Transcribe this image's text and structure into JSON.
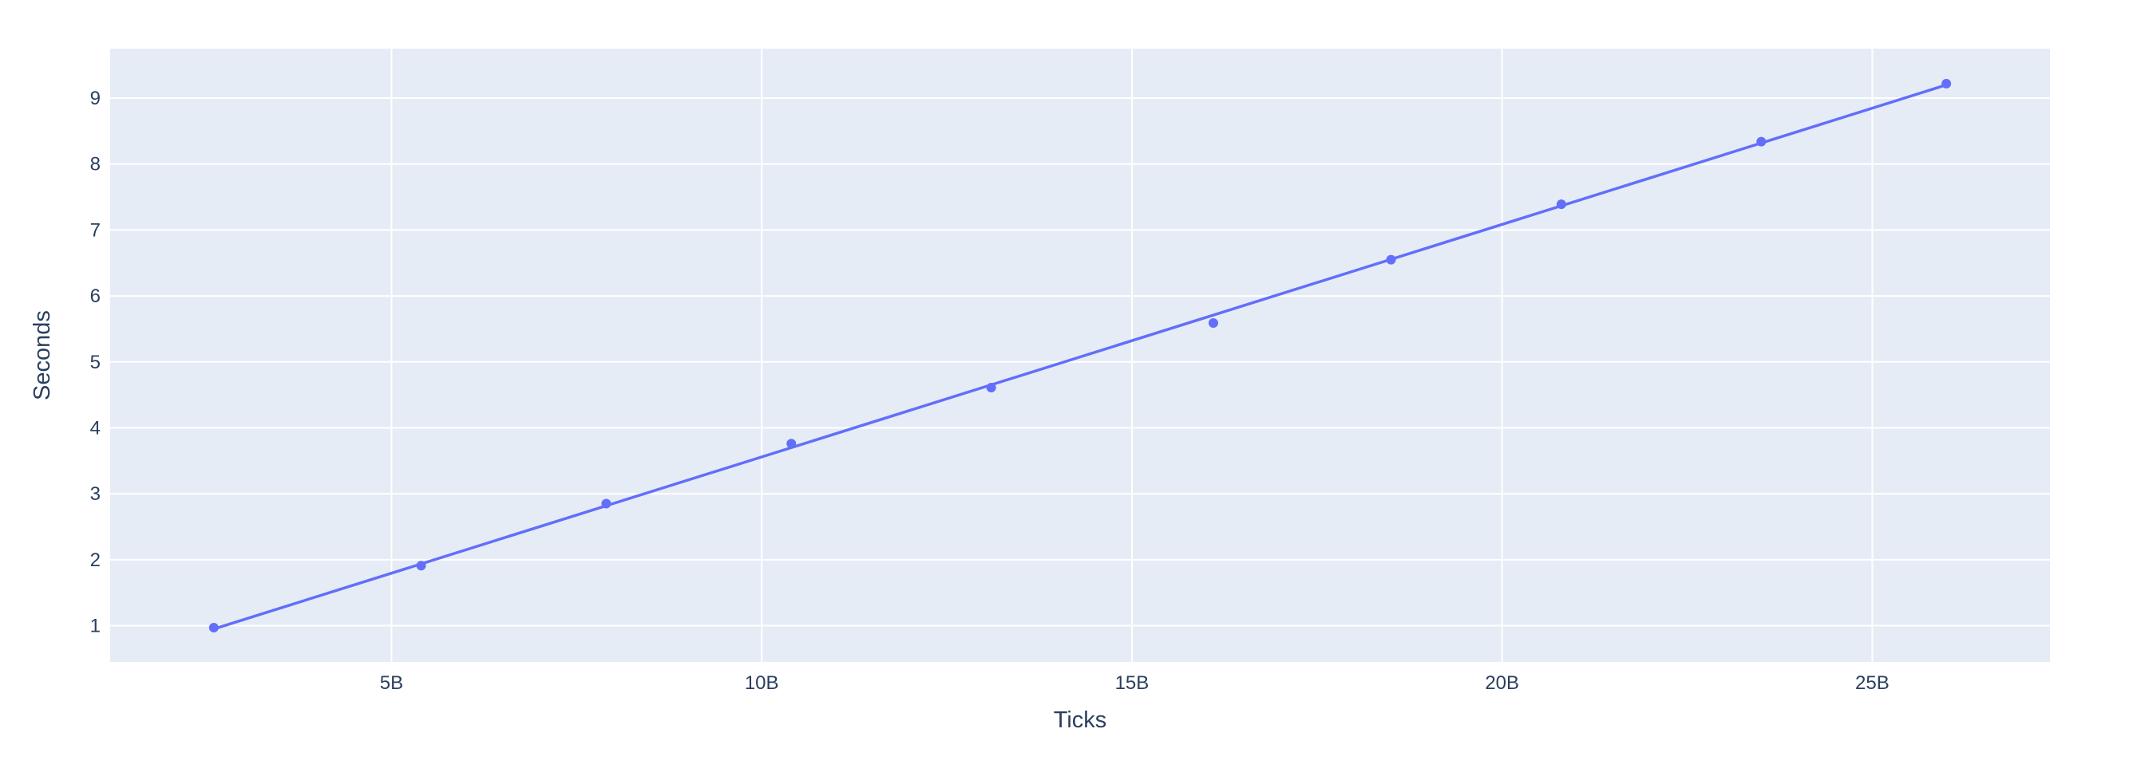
{
  "chart_data": {
    "type": "line",
    "xlabel": "Ticks",
    "ylabel": "Seconds",
    "xlim": [
      1200000000,
      27400000000
    ],
    "ylim": [
      0.45,
      9.75
    ],
    "x_ticks": [
      {
        "value": 5000000000,
        "label": "5B"
      },
      {
        "value": 10000000000,
        "label": "10B"
      },
      {
        "value": 15000000000,
        "label": "15B"
      },
      {
        "value": 20000000000,
        "label": "20B"
      },
      {
        "value": 25000000000,
        "label": "25B"
      }
    ],
    "y_ticks": [
      {
        "value": 1,
        "label": "1"
      },
      {
        "value": 2,
        "label": "2"
      },
      {
        "value": 3,
        "label": "3"
      },
      {
        "value": 4,
        "label": "4"
      },
      {
        "value": 5,
        "label": "5"
      },
      {
        "value": 6,
        "label": "6"
      },
      {
        "value": 7,
        "label": "7"
      },
      {
        "value": 8,
        "label": "8"
      },
      {
        "value": 9,
        "label": "9"
      }
    ],
    "grid": true,
    "legend": "none",
    "series": [
      {
        "mode": "markers",
        "points": [
          {
            "x": 2600000000,
            "y": 0.97
          },
          {
            "x": 5400000000,
            "y": 1.91
          },
          {
            "x": 7900000000,
            "y": 2.85
          },
          {
            "x": 10400000000,
            "y": 3.76
          },
          {
            "x": 13100000000,
            "y": 4.61
          },
          {
            "x": 16100000000,
            "y": 5.59
          },
          {
            "x": 18500000000,
            "y": 6.55
          },
          {
            "x": 20800000000,
            "y": 7.39
          },
          {
            "x": 23500000000,
            "y": 8.34
          },
          {
            "x": 26000000000,
            "y": 9.22
          }
        ]
      },
      {
        "mode": "line",
        "points": [
          {
            "x": 2600000000,
            "y": 0.95
          },
          {
            "x": 26000000000,
            "y": 9.2
          }
        ]
      }
    ],
    "colors": {
      "series": "#636efa",
      "plot_background": "#e5ecf6",
      "grid": "#ffffff",
      "text": "#2a3f5f"
    }
  }
}
